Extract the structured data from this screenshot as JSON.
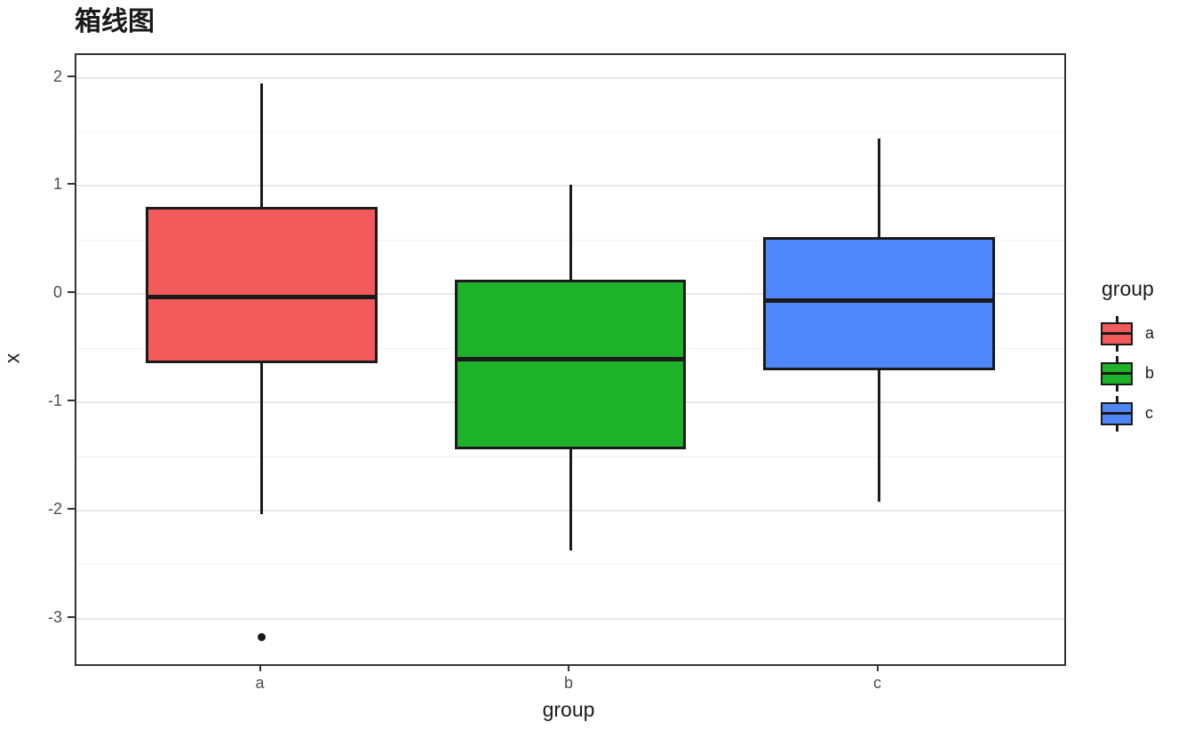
{
  "title": "箱线图",
  "chart_data": {
    "type": "boxplot",
    "title": "箱线图",
    "xlabel": "group",
    "ylabel": "x",
    "categories": [
      "a",
      "b",
      "c"
    ],
    "x_positions": [
      1,
      2,
      3
    ],
    "xlim": [
      0.4,
      3.6
    ],
    "ylim": [
      -3.42,
      2.21
    ],
    "yticks": [
      2,
      1,
      0,
      -1,
      -2,
      -3
    ],
    "ytick_labels": [
      "2",
      "1",
      "0",
      "-1",
      "-2",
      "-3"
    ],
    "yticks_minor": [
      1.5,
      0.5,
      -0.5,
      -1.5,
      -2.5
    ],
    "box_width": 0.75,
    "grid": "major+minor horizontal",
    "legend_position": "right",
    "series": [
      {
        "name": "a",
        "color": "#f25a5c",
        "whisker_low": -2.03,
        "q1": -0.64,
        "median": -0.03,
        "q3": 0.81,
        "whisker_high": 1.95,
        "outliers": [
          -3.17
        ]
      },
      {
        "name": "b",
        "color": "#1db22a",
        "whisker_low": -2.37,
        "q1": -1.43,
        "median": -0.6,
        "q3": 0.13,
        "whisker_high": 1.01,
        "outliers": []
      },
      {
        "name": "c",
        "color": "#4f87fa",
        "whisker_low": -1.92,
        "q1": -0.7,
        "median": -0.06,
        "q3": 0.53,
        "whisker_high": 1.44,
        "outliers": []
      }
    ]
  },
  "legend": {
    "title": "group",
    "entries": [
      {
        "label": "a",
        "color": "#f25a5c"
      },
      {
        "label": "b",
        "color": "#1db22a"
      },
      {
        "label": "c",
        "color": "#4f87fa"
      }
    ]
  },
  "colors": {
    "panel_border": "#333333",
    "grid_major": "#e8e8e8",
    "grid_minor": "#f2f2f2",
    "stroke": "#1a1a1a",
    "tick_text": "#4d4d4d",
    "axis_title_text": "#1a1a1a"
  }
}
